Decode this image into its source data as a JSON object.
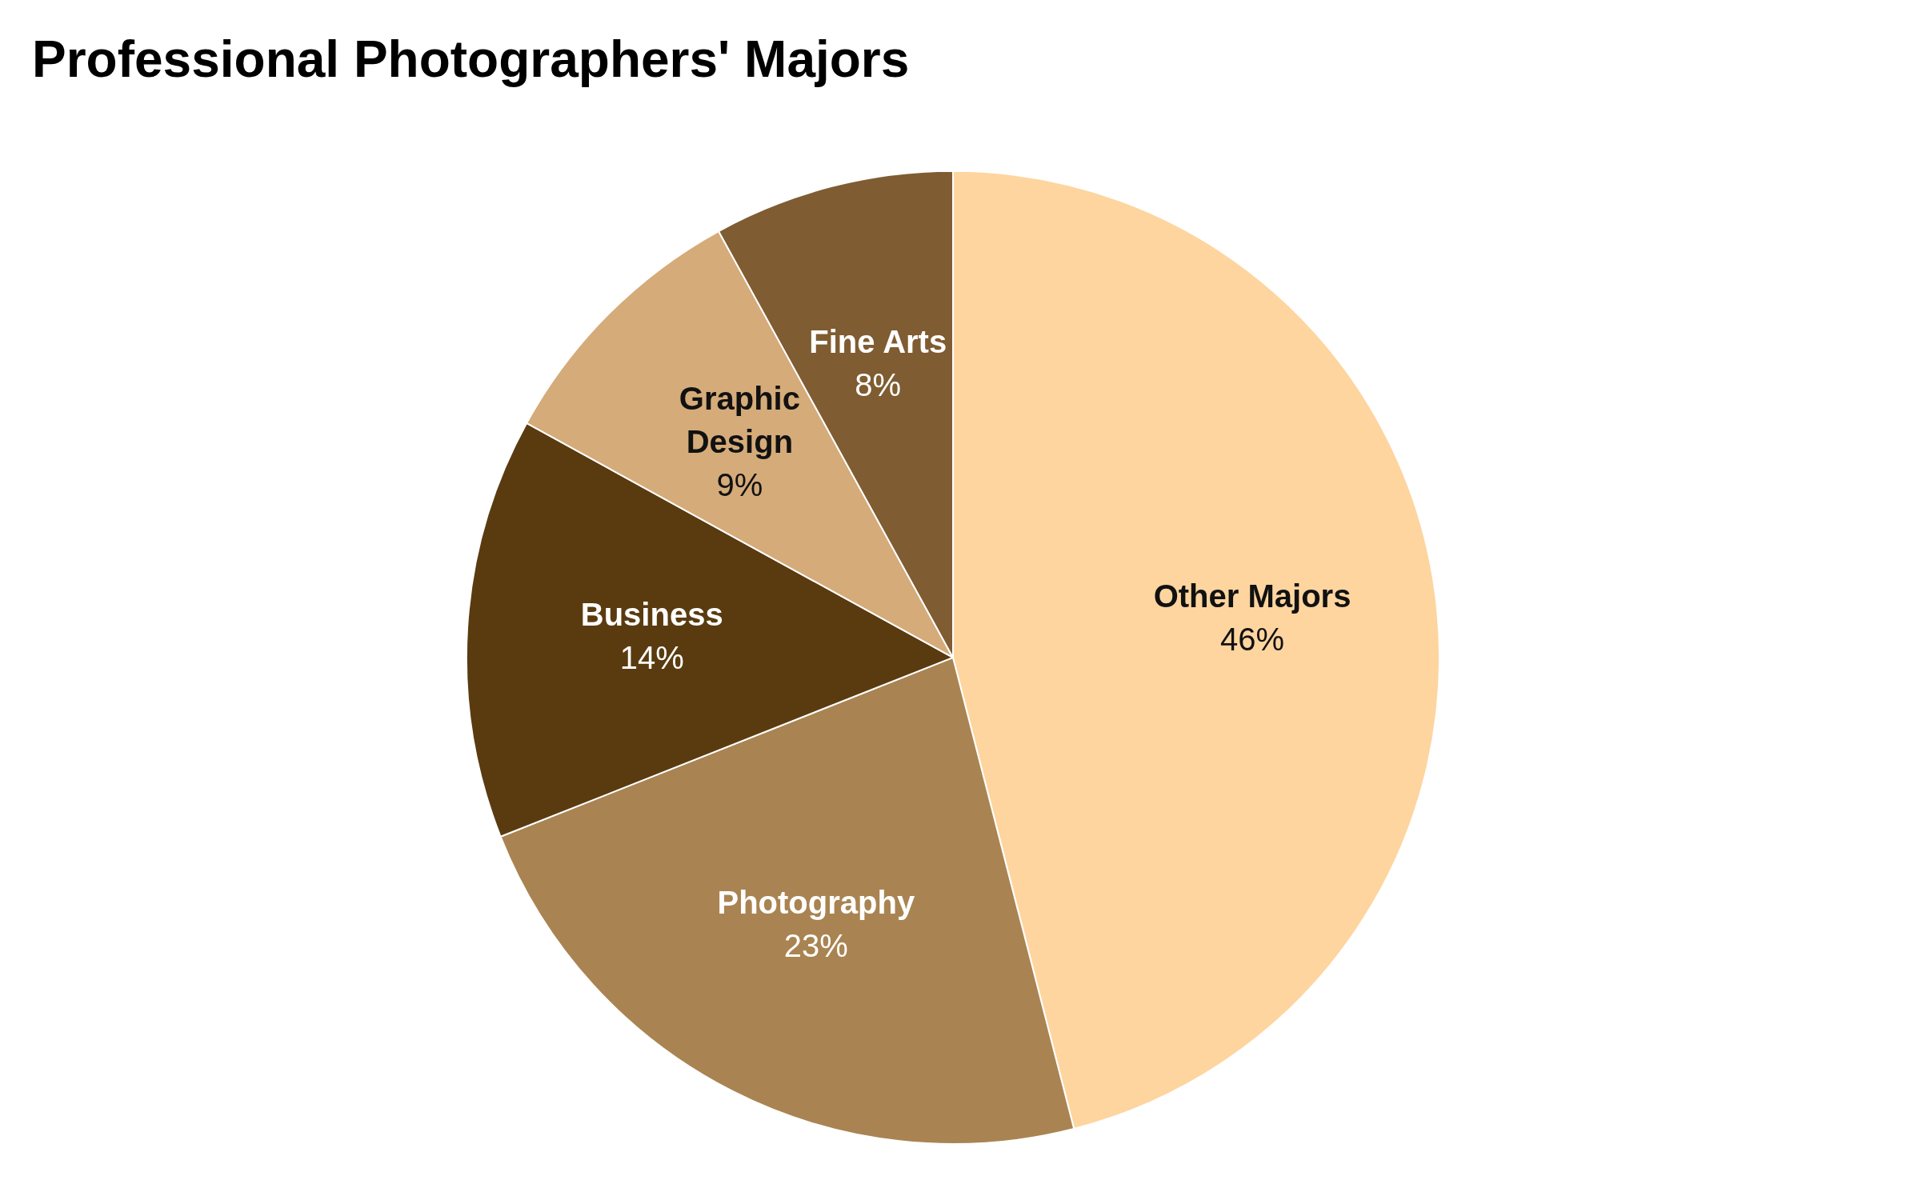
{
  "chart_data": {
    "type": "pie",
    "title": "Professional Photographers' Majors",
    "categories": [
      "Other Majors",
      "Photography",
      "Business",
      "Graphic Design",
      "Fine Arts"
    ],
    "values": [
      46,
      23,
      14,
      9,
      8
    ],
    "colors": [
      "#fed59f",
      "#a98452",
      "#5a3b10",
      "#d5ab79",
      "#7f5c31"
    ],
    "value_labels": [
      "46%",
      "23%",
      "14%",
      "9%",
      "8%"
    ],
    "legend": false
  }
}
